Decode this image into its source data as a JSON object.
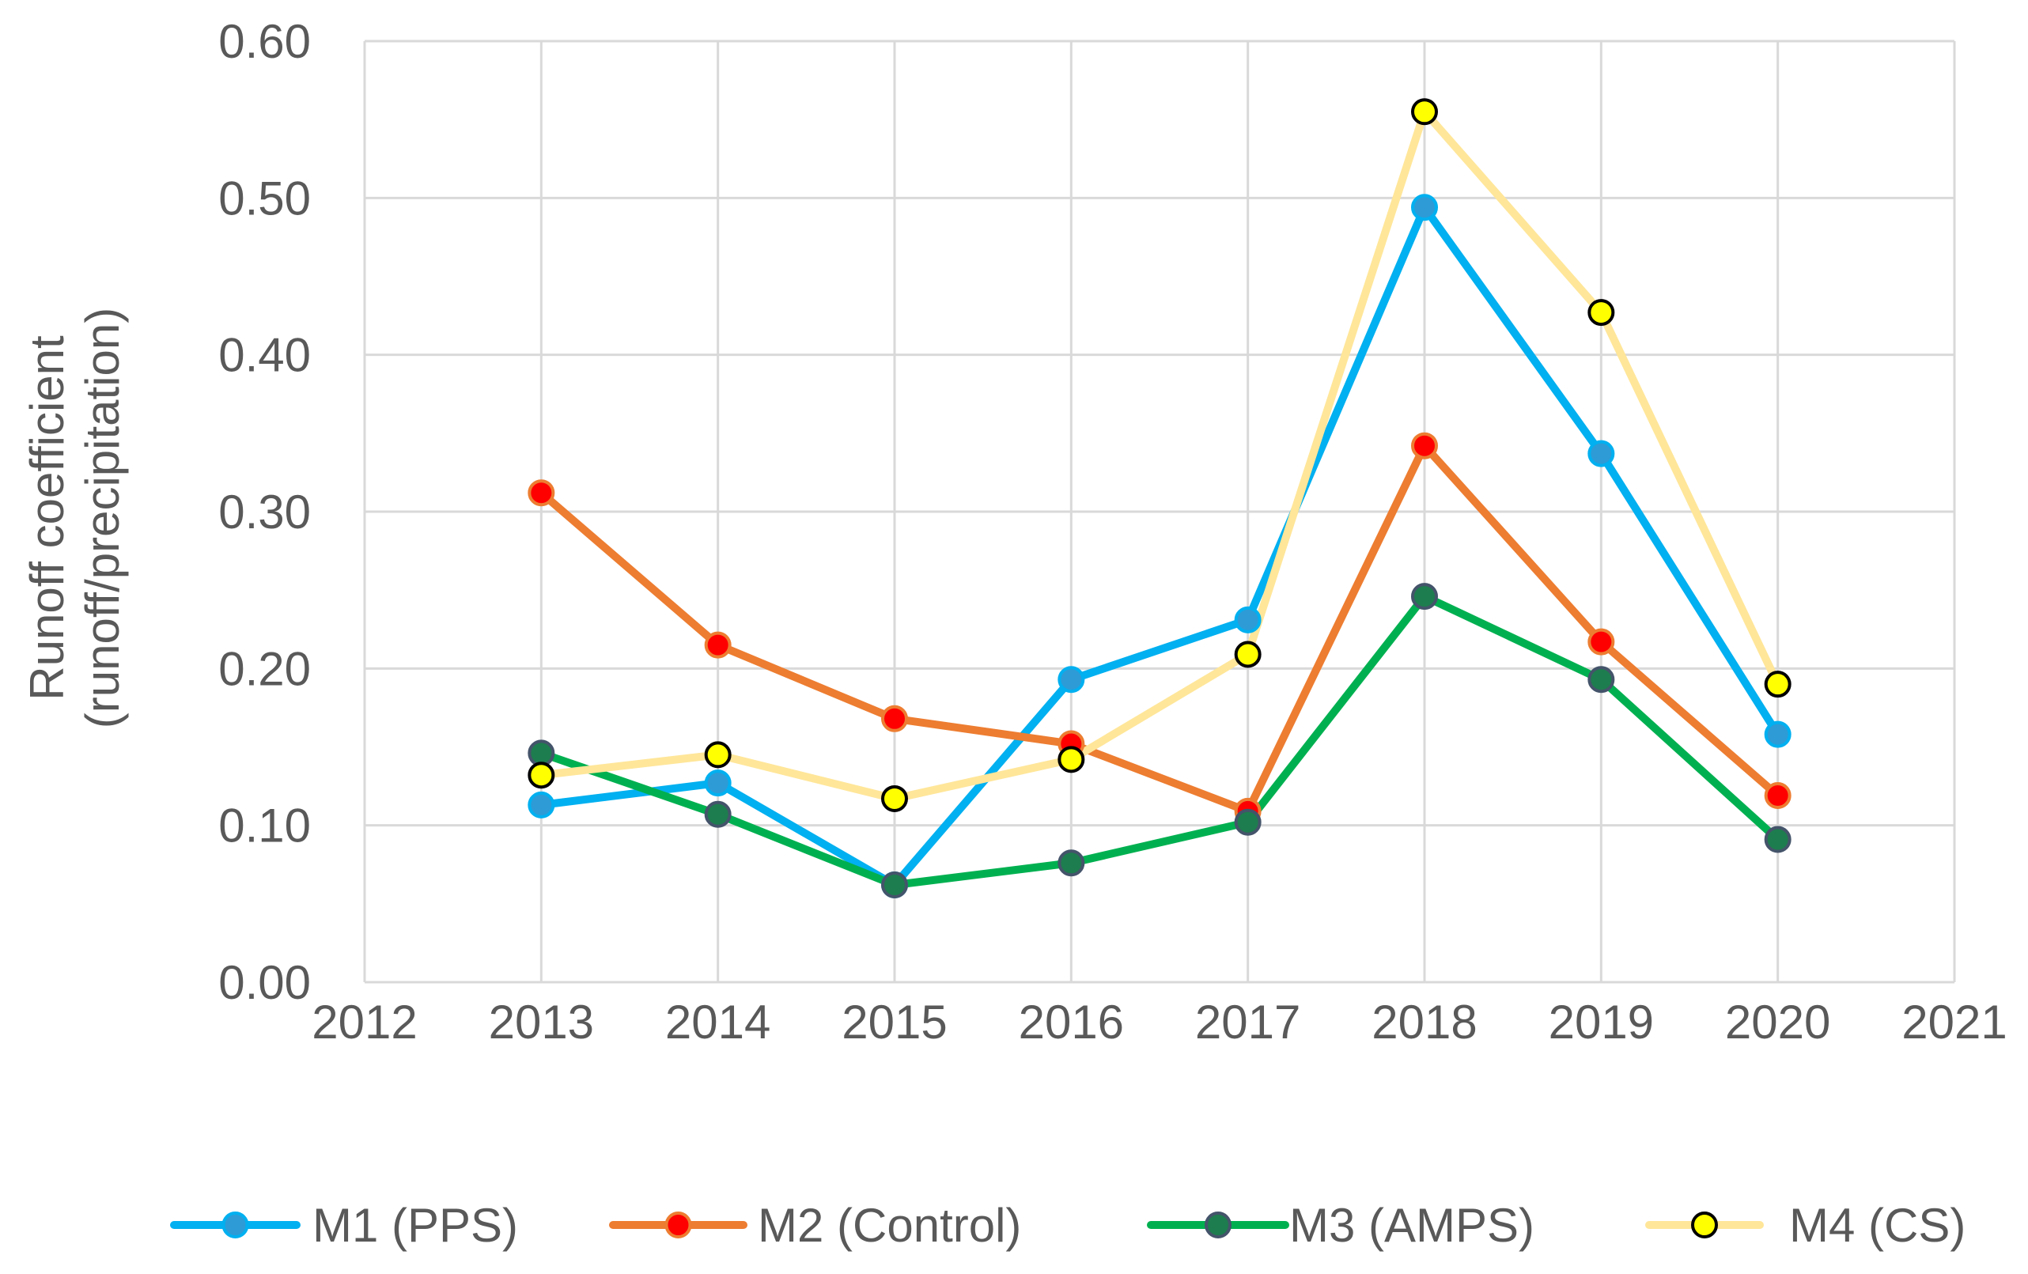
{
  "chart_data": {
    "type": "line",
    "title": "",
    "xlabel": "",
    "ylabel": "Runoff coefficient",
    "ylabel_line2": "(runoff/precipitation)",
    "xlim": [
      2012,
      2021
    ],
    "ylim": [
      0,
      0.6
    ],
    "x_ticks": [
      2012,
      2013,
      2014,
      2015,
      2016,
      2017,
      2018,
      2019,
      2020,
      2021
    ],
    "x_tick_labels": [
      "2012",
      "2013",
      "2014",
      "2015",
      "2016",
      "2017",
      "2018",
      "2019",
      "2020",
      "2021"
    ],
    "y_ticks": [
      0,
      0.1,
      0.2,
      0.3,
      0.4,
      0.5,
      0.6
    ],
    "y_tick_labels": [
      "0.00",
      "0.10",
      "0.20",
      "0.30",
      "0.40",
      "0.50",
      "0.60"
    ],
    "grid": true,
    "legend_position": "bottom",
    "x": [
      2013,
      2014,
      2015,
      2016,
      2017,
      2018,
      2019,
      2020
    ],
    "series": [
      {
        "name": "M1 (PPS)",
        "values": [
          0.113,
          0.127,
          0.062,
          0.193,
          0.231,
          0.494,
          0.337,
          0.158
        ],
        "line_color": "#00B0F0",
        "marker_fill": "#2E9BD6",
        "marker_stroke": "#00B0F0"
      },
      {
        "name": "M2 (Control)",
        "values": [
          0.312,
          0.215,
          0.168,
          0.152,
          0.109,
          0.342,
          0.217,
          0.119
        ],
        "line_color": "#ED7D31",
        "marker_fill": "#FF0000",
        "marker_stroke": "#ED7D31"
      },
      {
        "name": "M3 (AMPS)",
        "values": [
          0.146,
          0.107,
          0.062,
          0.076,
          0.102,
          0.246,
          0.193,
          0.091
        ],
        "line_color": "#00B050",
        "marker_fill": "#1E7D4E",
        "marker_stroke": "#44546A"
      },
      {
        "name": "M4 (CS)",
        "values": [
          0.132,
          0.145,
          0.117,
          0.142,
          0.209,
          0.555,
          0.427,
          0.19
        ],
        "line_color": "#FFE699",
        "marker_fill": "#FFFF00",
        "marker_stroke": "#000000"
      }
    ]
  }
}
